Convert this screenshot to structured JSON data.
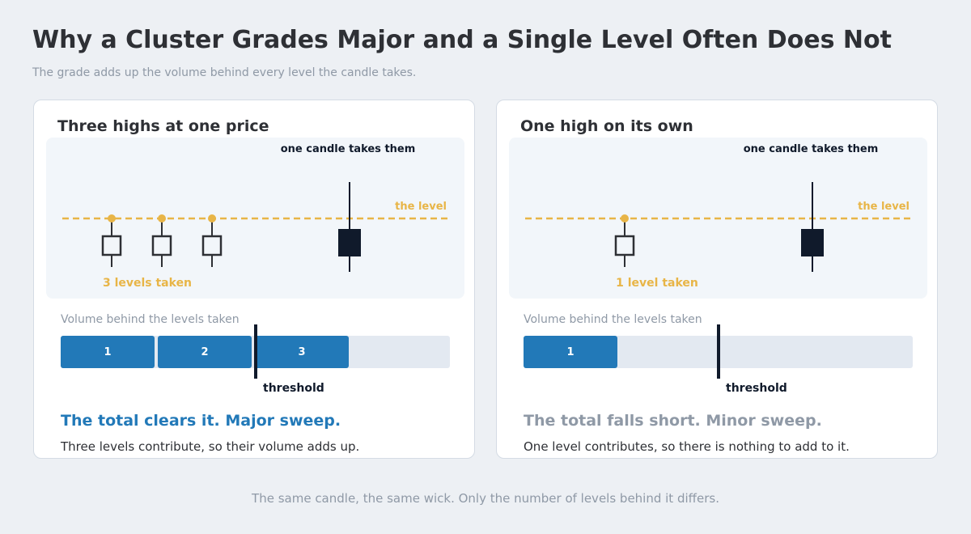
{
  "title": "Why a Cluster Grades Major and a Single Level Often Does Not",
  "subtitle": "The grade adds up the volume behind every level the candle takes.",
  "colors": {
    "level": "#e8b547",
    "volume_bar": "#2279b8",
    "candle": "#101a2b",
    "major_text": "#2279b8",
    "minor_text": "#8f99a6"
  },
  "panels": [
    {
      "title": "Three highs at one price",
      "candle_annotation": "one candle takes them",
      "level_label": "the level",
      "levels_taken_label": "3 levels taken",
      "highs_count": 3,
      "volume_label": "Volume behind the levels taken",
      "segments": [
        "1",
        "2",
        "3"
      ],
      "threshold_label": "threshold",
      "verdict": "The total clears it. Major sweep.",
      "verdict_status": "major",
      "explanation": "Three levels contribute, so their volume adds up."
    },
    {
      "title": "One high on its own",
      "candle_annotation": "one candle takes them",
      "level_label": "the level",
      "levels_taken_label": "1 level taken",
      "highs_count": 1,
      "volume_label": "Volume behind the levels taken",
      "segments": [
        "1"
      ],
      "threshold_label": "threshold",
      "verdict": "The total falls short. Minor sweep.",
      "verdict_status": "minor",
      "explanation": "One level contributes, so there is nothing to add to it."
    }
  ],
  "footer": "The same candle, the same wick. Only the number of levels behind it differs."
}
